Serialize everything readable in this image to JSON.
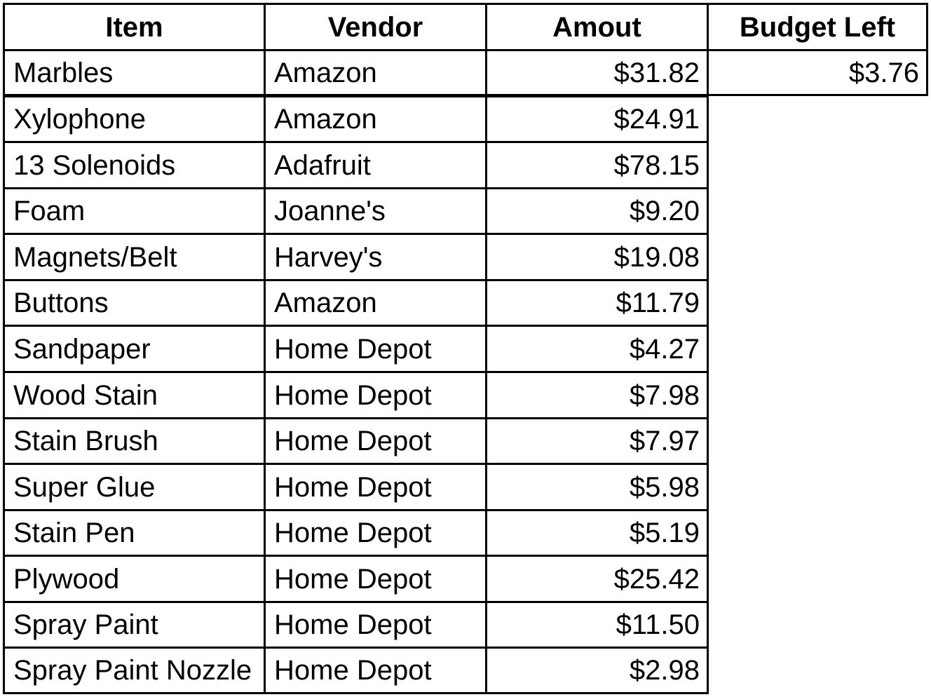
{
  "table": {
    "headers": {
      "item": "Item",
      "vendor": "Vendor",
      "amount": "Amout",
      "budget_left": "Budget Left"
    },
    "rows": [
      {
        "item": "Marbles",
        "vendor": "Amazon",
        "amount": "$31.82"
      },
      {
        "item": "Xylophone",
        "vendor": "Amazon",
        "amount": "$24.91"
      },
      {
        "item": "13 Solenoids",
        "vendor": "Adafruit",
        "amount": "$78.15"
      },
      {
        "item": "Foam",
        "vendor": "Joanne's",
        "amount": "$9.20"
      },
      {
        "item": "Magnets/Belt",
        "vendor": "Harvey's",
        "amount": "$19.08"
      },
      {
        "item": "Buttons",
        "vendor": "Amazon",
        "amount": "$11.79"
      },
      {
        "item": "Sandpaper",
        "vendor": "Home Depot",
        "amount": "$4.27"
      },
      {
        "item": "Wood Stain",
        "vendor": "Home Depot",
        "amount": "$7.98"
      },
      {
        "item": "Stain Brush",
        "vendor": "Home Depot",
        "amount": "$7.97"
      },
      {
        "item": "Super Glue",
        "vendor": "Home Depot",
        "amount": "$5.98"
      },
      {
        "item": "Stain Pen",
        "vendor": "Home Depot",
        "amount": "$5.19"
      },
      {
        "item": "Plywood",
        "vendor": "Home Depot",
        "amount": "$25.42"
      },
      {
        "item": "Spray Paint",
        "vendor": "Home Depot",
        "amount": "$11.50"
      },
      {
        "item": "Spray Paint Nozzle",
        "vendor": "Home Depot",
        "amount": "$2.98"
      }
    ],
    "budget_left_value": "$3.76"
  }
}
